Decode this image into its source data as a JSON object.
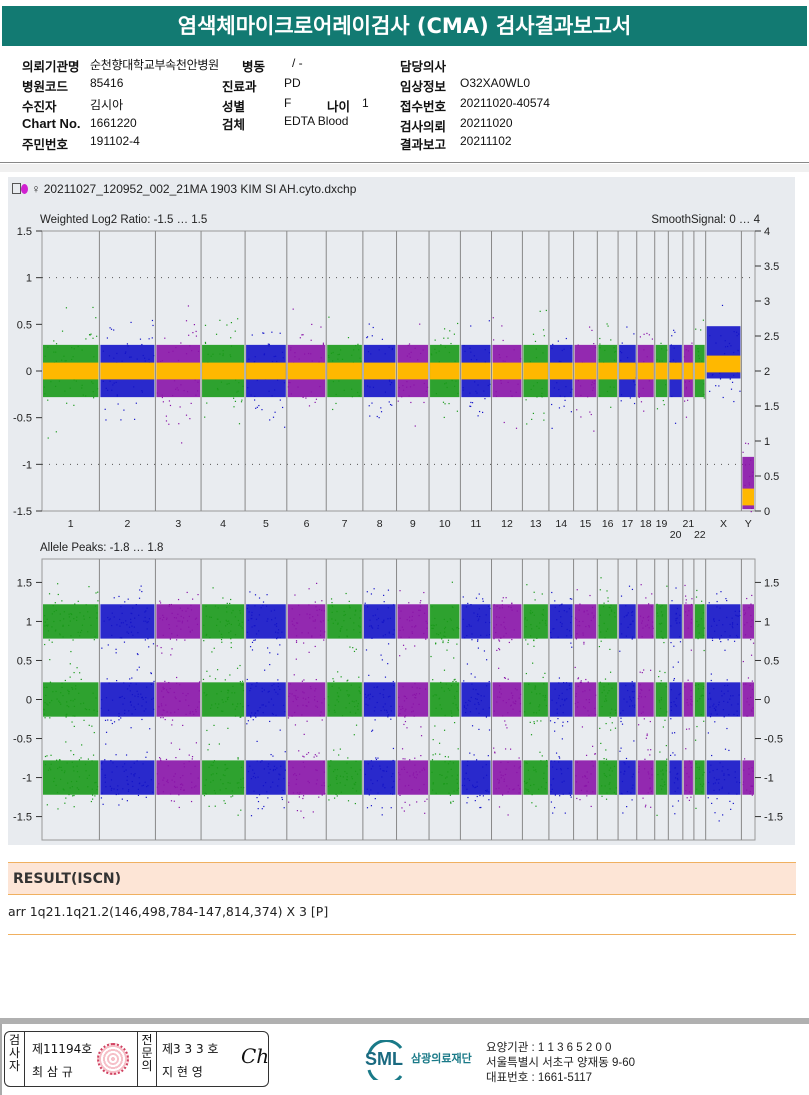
{
  "title": "염색체마이크로어레이검사 (CMA) 검사결과보고서",
  "info": {
    "institution_label": "의뢰기관명",
    "institution": "순천향대학교부속천안병원",
    "ward_label": "병동",
    "ward": "/ -",
    "doctor_label": "담당의사",
    "doctor": "",
    "hospital_code_label": "병원코드",
    "hospital_code": "85416",
    "dept_label": "진료과",
    "dept": "PD",
    "clinical_label": "임상정보",
    "clinical": "O32XA0WL0",
    "patient_label": "수진자",
    "patient": "김시아",
    "sex_label": "성별",
    "sex": "F",
    "age_label": "나이",
    "age": "1",
    "receipt_label": "접수번호",
    "receipt": "20211020-40574",
    "chart_label": "Chart No.",
    "chart": "1661220",
    "specimen_label": "검체",
    "specimen": "EDTA Blood",
    "request_label": "검사의뢰",
    "request": "20211020",
    "id_label": "주민번호",
    "id": "191102-4",
    "report_label": "결과보고",
    "report": "20211102"
  },
  "chart_file": "20211027_120952_002_21MA 1903 KIM SI AH.cyto.dxchp",
  "chart_data": [
    {
      "type": "scatter",
      "title": "Weighted Log2 Ratio: -1.5 … 1.5",
      "right_title": "SmoothSignal: 0 … 4",
      "ylim": [
        -1.5,
        1.5
      ],
      "y2lim": [
        0,
        4
      ],
      "yticks": [
        "1.5",
        "1",
        "0.5",
        "0",
        "-0.5",
        "-1",
        "-1.5"
      ],
      "y2ticks": [
        "4",
        "3.5",
        "3",
        "2.5",
        "2",
        "1.5",
        "1",
        "0.5",
        "0"
      ],
      "categories": [
        "1",
        "2",
        "3",
        "4",
        "5",
        "6",
        "7",
        "8",
        "9",
        "10",
        "11",
        "12",
        "13",
        "14",
        "15",
        "16",
        "17",
        "18",
        "19",
        "20",
        "21",
        "22",
        "X",
        "Y"
      ],
      "median_log2": [
        0,
        0,
        0,
        0,
        0,
        0,
        0,
        0,
        0,
        0,
        0,
        0,
        0,
        0,
        0,
        0,
        0,
        0,
        0,
        0,
        0,
        0,
        0.2,
        -1.2
      ],
      "smooth_signal": [
        2,
        2,
        2,
        2,
        2,
        2,
        2,
        2,
        2,
        2,
        2,
        2,
        2,
        2,
        2,
        2,
        2,
        2,
        2,
        2,
        2,
        2,
        2.1,
        0.2
      ],
      "grid": "dotted"
    },
    {
      "type": "scatter",
      "title": "Allele Peaks: -1.8 … 1.8",
      "ylim": [
        -1.8,
        1.8
      ],
      "yticks": [
        "1.5",
        "1",
        "0.5",
        "0",
        "-0.5",
        "-1",
        "-1.5"
      ],
      "peaks": [
        1,
        0,
        -1
      ]
    }
  ],
  "chromosome_sizes_mb": [
    249,
    243,
    198,
    191,
    181,
    171,
    159,
    146,
    141,
    136,
    135,
    134,
    115,
    107,
    103,
    90,
    81,
    78,
    59,
    63,
    48,
    51,
    155,
    59
  ],
  "colors": {
    "series": [
      "#1a9a1a",
      "#1414c8",
      "#8a14a8"
    ],
    "smooth": "#ffb800",
    "title_bg": "#127a72",
    "result_bg": "#fde5d6"
  },
  "result": {
    "header": "RESULT(ISCN)",
    "text": "arr 1q21.1q21.2(146,498,784-147,814,374) X 3 [P]"
  },
  "footer": {
    "tester_label": "검사자",
    "tester_no": "제11194호",
    "tester_name": "최 삼 규",
    "specialist_label": "전문의",
    "specialist_no": "제3 3 3 호",
    "specialist_name": "지 현 영",
    "logo": "SML",
    "org": "삼광의료재단",
    "code": "요양기관 : 1 1 3 6 5 2 0 0",
    "address": "서울특별시 서초구 양재동 9-60",
    "phone": "대표번호 : 1661-5117"
  }
}
